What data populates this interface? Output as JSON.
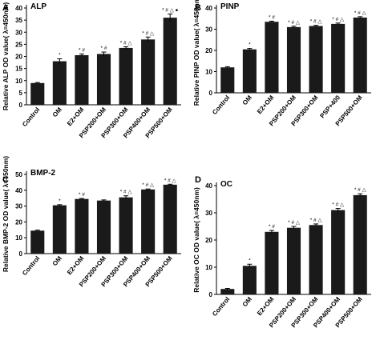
{
  "chart_data": [
    {
      "type": "bar",
      "panel_letter": "A",
      "title": "ALP",
      "ylabel": "Relative ALP OD value( λ=450nm)",
      "ylim": [
        0,
        40
      ],
      "yticks": [
        0,
        5,
        10,
        15,
        20,
        25,
        30,
        35,
        40
      ],
      "categories": [
        "Control",
        "OM",
        "E2+OM",
        "PSP200+OM",
        "PSP300+OM",
        "PSP400+OM",
        "PSP500+OM"
      ],
      "values": [
        9,
        18,
        20.5,
        21,
        23.5,
        27,
        36
      ],
      "errors": [
        0.2,
        1.0,
        0.5,
        0.8,
        0.5,
        1.0,
        1.5
      ],
      "annotations": [
        "",
        "*",
        "* #",
        "* #",
        "* # △",
        "* # △",
        "* # △ ●"
      ],
      "bar_color": "#1a1a1a"
    },
    {
      "type": "bar",
      "panel_letter": "B",
      "title": "PINP",
      "ylabel": "Relative PINP OD value( λ=450nm)",
      "ylim": [
        0,
        40
      ],
      "yticks": [
        0,
        10,
        20,
        30,
        40
      ],
      "categories": [
        "Control",
        "OM",
        "E2+OM",
        "PSP200+OM",
        "PSP300+OM",
        "PSP+400",
        "PSP500+OM"
      ],
      "values": [
        12,
        20.5,
        33.5,
        31,
        31.5,
        32.5,
        35.5
      ],
      "errors": [
        0.3,
        0.4,
        0.3,
        0.4,
        0.3,
        0.4,
        0.4
      ],
      "annotations": [
        "",
        "*",
        "* #",
        "* # △",
        "* # △",
        "* # △",
        "* # △"
      ],
      "bar_color": "#1a1a1a"
    },
    {
      "type": "bar",
      "panel_letter": "C",
      "title": "BMP-2",
      "ylabel": "Relative BMP-2 OD value( λ=450nm)",
      "ylim": [
        0,
        50
      ],
      "yticks": [
        0,
        10,
        20,
        30,
        40,
        50
      ],
      "categories": [
        "Control",
        "OM",
        "E2+OM",
        "PSP200+OM",
        "PSP300+OM",
        "PSP400+OM",
        "PSP500+OM"
      ],
      "values": [
        14.5,
        30.5,
        34.5,
        33.5,
        35.5,
        40.5,
        43.5
      ],
      "errors": [
        0.3,
        0.4,
        0.3,
        0.4,
        1.0,
        0.3,
        0.3
      ],
      "annotations": [
        "",
        "*",
        "* #",
        "",
        "* # △",
        "* # △",
        "* # △"
      ],
      "bar_color": "#1a1a1a"
    },
    {
      "type": "bar",
      "panel_letter": "D",
      "title": "OC",
      "ylabel": "Relative OC OD value( λ=450nm)",
      "ylim": [
        0,
        40
      ],
      "yticks": [
        0,
        10,
        20,
        30,
        40
      ],
      "categories": [
        "Control",
        "OM",
        "E2+OM",
        "PSP200+OM",
        "PSP300+OM",
        "PSP400+OM",
        "PSP500+OM"
      ],
      "values": [
        2,
        10.5,
        23,
        24.5,
        25.5,
        31,
        36.5
      ],
      "errors": [
        0.2,
        0.6,
        0.5,
        0.5,
        0.4,
        0.6,
        0.5
      ],
      "annotations": [
        "",
        "*",
        "* #",
        "* # △",
        "* # △",
        "* # △",
        "* # △"
      ],
      "bar_color": "#1a1a1a"
    }
  ]
}
